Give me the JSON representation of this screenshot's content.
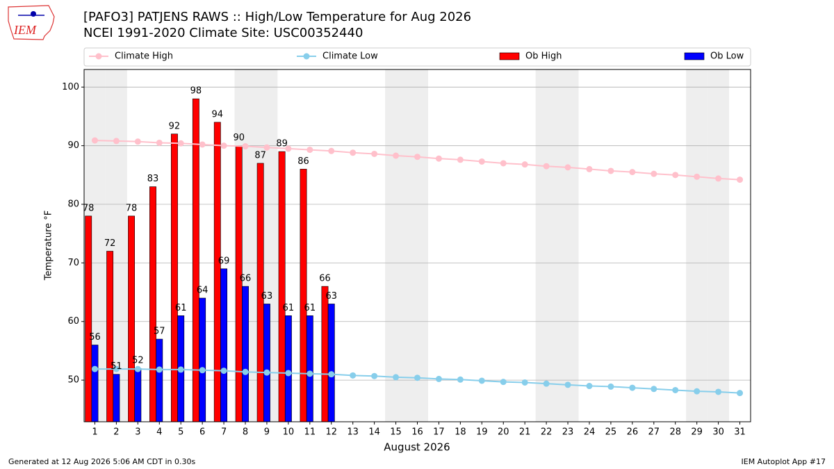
{
  "logo_text": "IEM",
  "footer": {
    "left": "Generated at 12 Aug 2026 5:06 AM CDT in 0.30s",
    "right": "IEM Autoplot App #17"
  },
  "chart_data": {
    "type": "bar",
    "title": "[PAFO3] PATJENS RAWS :: High/Low Temperature for Aug 2026",
    "subtitle": "NCEI 1991-2020 Climate Site: USC00352440",
    "x_label": "August 2026",
    "y_label": "Temperature °F",
    "categories": [
      "1",
      "2",
      "3",
      "4",
      "5",
      "6",
      "7",
      "8",
      "9",
      "10",
      "11",
      "12",
      "13",
      "14",
      "15",
      "16",
      "17",
      "18",
      "19",
      "20",
      "21",
      "22",
      "23",
      "24",
      "25",
      "26",
      "27",
      "28",
      "29",
      "30",
      "31"
    ],
    "shaded_categories": [
      "1",
      "2",
      "8",
      "9",
      "15",
      "16",
      "22",
      "23",
      "29",
      "30"
    ],
    "shade_color": "#eeeeee",
    "ylim": [
      42.9,
      103
    ],
    "yticks": [
      50,
      60,
      70,
      80,
      90,
      100
    ],
    "grid": true,
    "legend": "top",
    "series": [
      {
        "name": "Climate High",
        "type": "line",
        "color": "#ffc0cb",
        "values": [
          90.9,
          90.8,
          90.7,
          90.5,
          90.4,
          90.2,
          90.0,
          89.9,
          89.7,
          89.5,
          89.3,
          89.1,
          88.8,
          88.6,
          88.3,
          88.1,
          87.8,
          87.6,
          87.3,
          87.0,
          86.8,
          86.5,
          86.3,
          86.0,
          85.7,
          85.5,
          85.2,
          85.0,
          84.7,
          84.4,
          84.2
        ]
      },
      {
        "name": "Climate Low",
        "type": "line",
        "color": "#87ceeb",
        "values": [
          51.9,
          51.9,
          51.9,
          51.8,
          51.8,
          51.7,
          51.6,
          51.4,
          51.3,
          51.2,
          51.1,
          51.0,
          50.8,
          50.7,
          50.5,
          50.4,
          50.2,
          50.1,
          49.9,
          49.7,
          49.6,
          49.4,
          49.2,
          49.0,
          48.9,
          48.7,
          48.5,
          48.3,
          48.1,
          48.0,
          47.8
        ]
      },
      {
        "name": "Ob High",
        "type": "bar",
        "color": "#ff0000",
        "values": [
          78,
          72,
          78,
          83,
          92,
          98,
          94,
          90,
          87,
          89,
          86,
          66,
          null,
          null,
          null,
          null,
          null,
          null,
          null,
          null,
          null,
          null,
          null,
          null,
          null,
          null,
          null,
          null,
          null,
          null,
          null
        ]
      },
      {
        "name": "Ob Low",
        "type": "bar",
        "color": "#0000ff",
        "values": [
          56,
          51,
          52,
          57,
          61,
          64,
          69,
          66,
          63,
          61,
          61,
          63,
          null,
          null,
          null,
          null,
          null,
          null,
          null,
          null,
          null,
          null,
          null,
          null,
          null,
          null,
          null,
          null,
          null,
          null,
          null
        ]
      }
    ]
  }
}
